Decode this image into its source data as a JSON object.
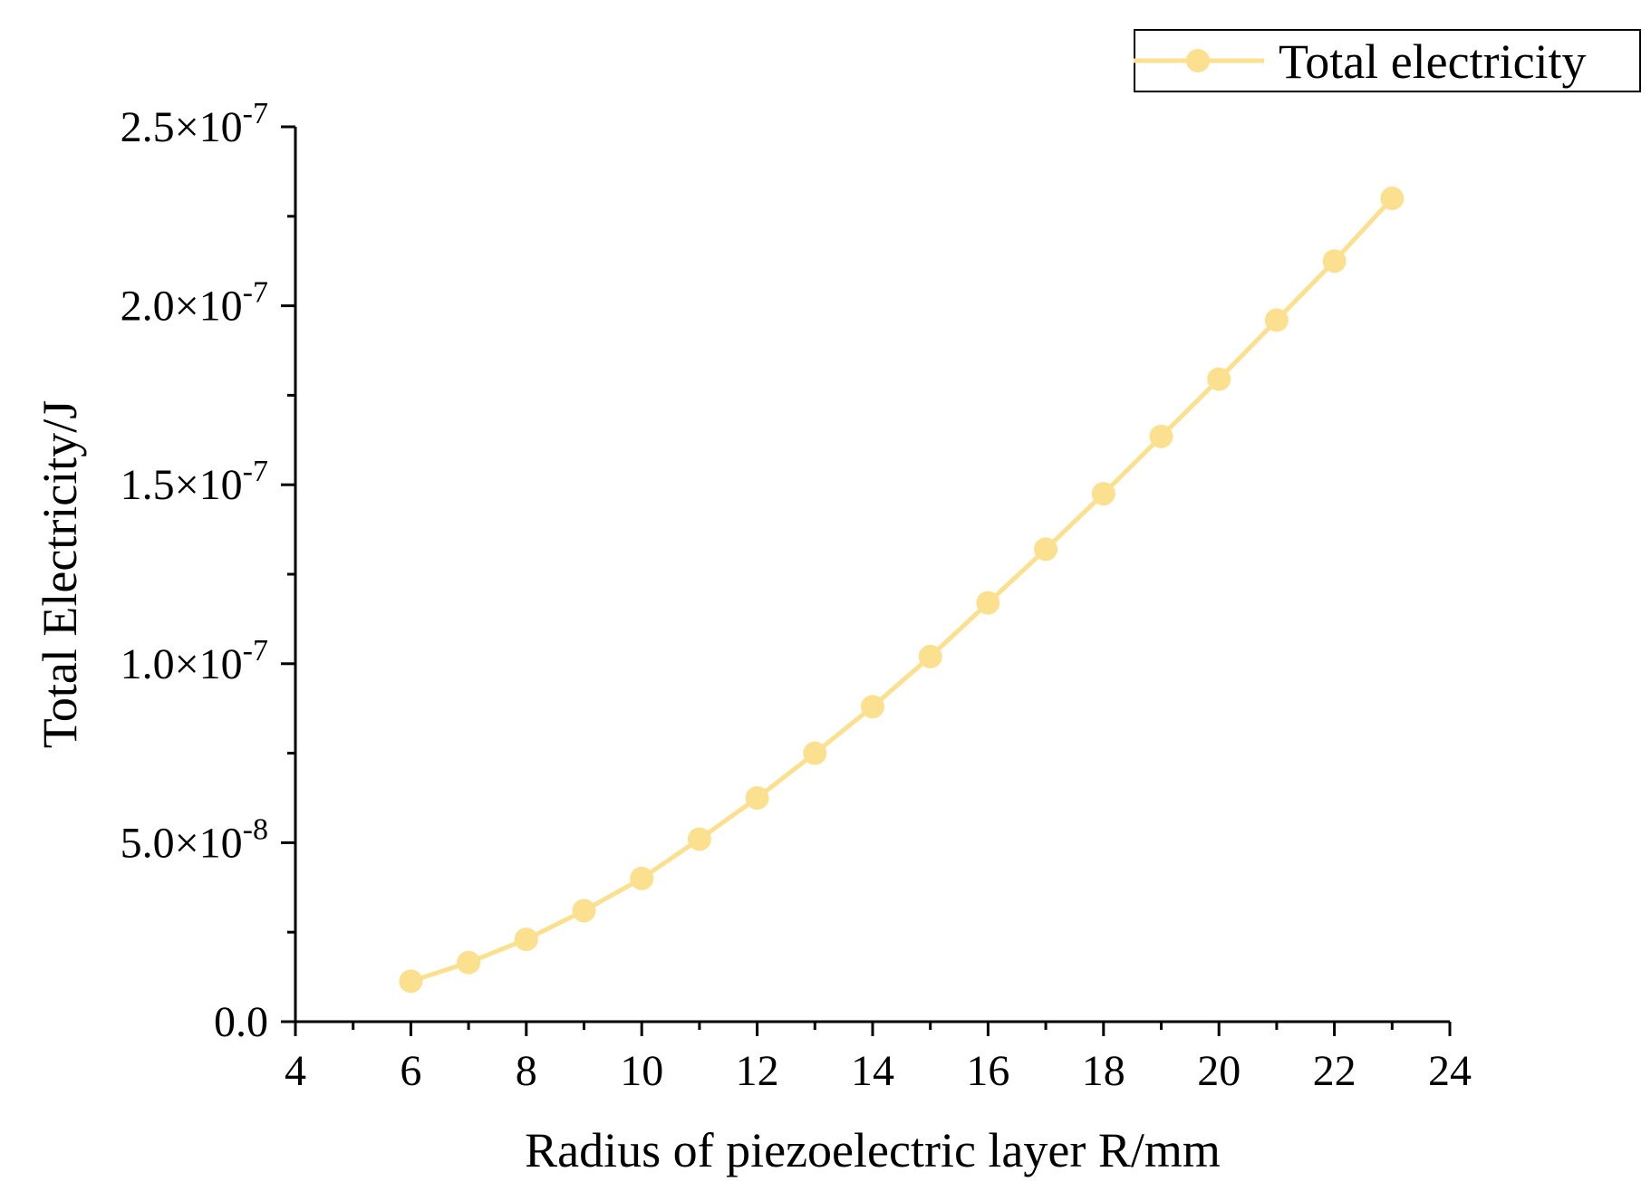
{
  "chart_data": {
    "type": "line",
    "title": "",
    "xlabel": "Radius of piezoelectric layer R/mm",
    "ylabel": "Total Electricity/J",
    "xlim": [
      4,
      24
    ],
    "ylim": [
      0,
      2.5e-07
    ],
    "x_ticks": [
      4,
      6,
      8,
      10,
      12,
      14,
      16,
      18,
      20,
      22,
      24
    ],
    "x_tick_labels": [
      "4",
      "6",
      "8",
      "10",
      "12",
      "14",
      "16",
      "18",
      "20",
      "22",
      "24"
    ],
    "y_ticks": [
      0,
      5e-08,
      1e-07,
      1.5e-07,
      2e-07,
      2.5e-07
    ],
    "y_tick_labels": [
      {
        "mantissa": "0.0",
        "exponent": ""
      },
      {
        "mantissa": "5.0×10",
        "exponent": "-8"
      },
      {
        "mantissa": "1.0×10",
        "exponent": "-7"
      },
      {
        "mantissa": "1.5×10",
        "exponent": "-7"
      },
      {
        "mantissa": "2.0×10",
        "exponent": "-7"
      },
      {
        "mantissa": "2.5×10",
        "exponent": "-7"
      }
    ],
    "grid": false,
    "legend_position": "top-right",
    "series": [
      {
        "name": "Total electricity",
        "color": "#FBE08F",
        "x": [
          6,
          7,
          8,
          9,
          10,
          11,
          12,
          13,
          14,
          15,
          16,
          17,
          18,
          19,
          20,
          21,
          22,
          23
        ],
        "y": [
          1.13e-08,
          1.65e-08,
          2.3e-08,
          3.1e-08,
          4e-08,
          5.1e-08,
          6.25e-08,
          7.5e-08,
          8.8e-08,
          1.02e-07,
          1.17e-07,
          1.32e-07,
          1.475e-07,
          1.635e-07,
          1.795e-07,
          1.96e-07,
          2.125e-07,
          2.3e-07
        ]
      }
    ]
  }
}
